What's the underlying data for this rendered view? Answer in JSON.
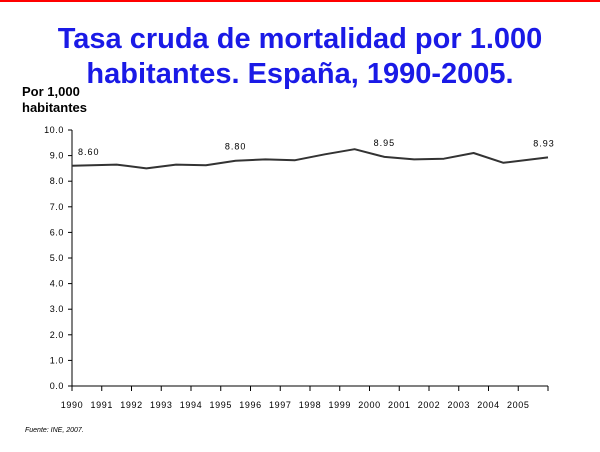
{
  "title_line1": "Tasa cruda de mortalidad por 1.000",
  "title_line2": "habitantes. España, 1990-2005.",
  "ylabel_line1": "Por 1,000",
  "ylabel_line2": "habitantes",
  "source": "Fuente: INE, 2007.",
  "colors": {
    "title": "#1a1ae6",
    "line": "#333333",
    "border": "#ff0000"
  },
  "chart_data": {
    "type": "line",
    "title": "Tasa cruda de mortalidad por 1.000 habitantes. España, 1990-2005.",
    "xlabel": "",
    "ylabel": "Por 1,000 habitantes",
    "ylim": [
      0,
      10
    ],
    "yticks": [
      "0.0",
      "1.0",
      "2.0",
      "3.0",
      "4.0",
      "5.0",
      "6.0",
      "7.0",
      "8.0",
      "9.0",
      "10.0"
    ],
    "categories": [
      "1990",
      "1991",
      "1992",
      "1993",
      "1994",
      "1995",
      "1996",
      "1997",
      "1998",
      "1999",
      "2000",
      "2001",
      "2002",
      "2003",
      "2004",
      "2005"
    ],
    "series": [
      {
        "values": [
          8.6,
          8.65,
          8.5,
          8.65,
          8.62,
          8.8,
          8.85,
          8.82,
          9.05,
          9.25,
          8.95,
          8.85,
          8.88,
          9.1,
          8.72,
          8.93
        ]
      }
    ],
    "data_labels": [
      {
        "index": 0,
        "text": "8.60"
      },
      {
        "index": 5,
        "text": "8.80"
      },
      {
        "index": 10,
        "text": "8.95"
      },
      {
        "index": 15,
        "text": "8.93"
      }
    ],
    "grid": false,
    "legend": "none"
  }
}
